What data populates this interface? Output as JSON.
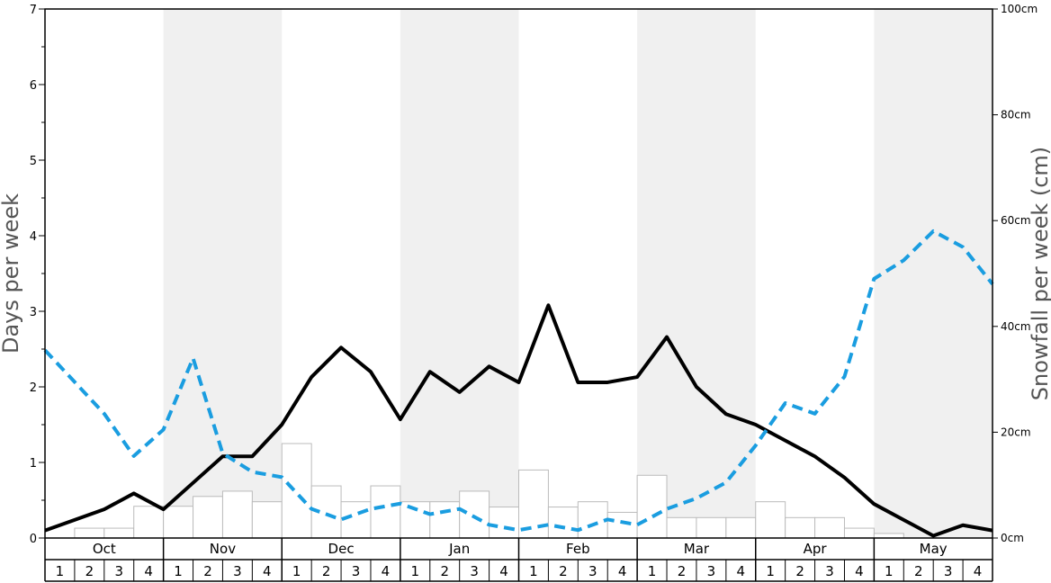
{
  "chart_data": {
    "type": "bar",
    "months": [
      "Oct",
      "Nov",
      "Dec",
      "Jan",
      "Feb",
      "Mar",
      "Apr",
      "May"
    ],
    "weeks": [
      "1",
      "2",
      "3",
      "4"
    ],
    "ylabel_left": "Days per week",
    "ylabel_right": "Snowfall per week (cm)",
    "ylim_left": [
      0,
      7
    ],
    "ylim_right": [
      0,
      100
    ],
    "left_ticks": [
      0,
      1,
      2,
      3,
      4,
      5,
      6,
      7
    ],
    "right_ticks": [
      {
        "value": 0,
        "label": "0cm"
      },
      {
        "value": 20,
        "label": "20cm"
      },
      {
        "value": 40,
        "label": "40cm"
      },
      {
        "value": 60,
        "label": "60cm"
      },
      {
        "value": 80,
        "label": "80cm"
      },
      {
        "value": 100,
        "label": "100cm"
      }
    ],
    "shaded_months": [
      "Nov",
      "Jan",
      "Mar",
      "May"
    ],
    "series": [
      {
        "kind": "bar",
        "axis": "left",
        "color": "#ffffff",
        "stroke": "#bbbbbb",
        "values": [
          0,
          0.13,
          0.13,
          0.42,
          0.42,
          0.55,
          0.62,
          0.48,
          1.25,
          0.69,
          0.48,
          0.69,
          0.48,
          0.48,
          0.62,
          0.41,
          0.9,
          0.41,
          0.48,
          0.34,
          0.83,
          0.27,
          0.27,
          0.27,
          0.48,
          0.27,
          0.27,
          0.13,
          0.06,
          0,
          0,
          0
        ]
      },
      {
        "kind": "line",
        "axis": "left",
        "color": "#000000",
        "dashed": false,
        "values": [
          0.1,
          0.24,
          0.38,
          0.59,
          0.38,
          0.73,
          1.08,
          1.08,
          1.5,
          2.13,
          2.52,
          2.2,
          1.57,
          2.2,
          1.93,
          2.27,
          2.06,
          3.08,
          2.06,
          2.06,
          2.13,
          2.66,
          2.0,
          1.64,
          1.5,
          1.29,
          1.08,
          0.8,
          0.45,
          0.24,
          0.03,
          0.17,
          0.1
        ]
      },
      {
        "kind": "line",
        "axis": "right",
        "color": "#1a9de0",
        "dashed": true,
        "values": [
          35.5,
          29.5,
          23.5,
          15.5,
          20.5,
          34,
          16,
          12.5,
          11.5,
          5.5,
          3.5,
          5.5,
          6.5,
          4.5,
          5.5,
          2.5,
          1.5,
          2.5,
          1.5,
          3.5,
          2.5,
          5.5,
          7.5,
          10.5,
          17.5,
          25.5,
          23.5,
          30.5,
          49,
          52.5,
          58,
          55,
          48
        ]
      }
    ]
  }
}
